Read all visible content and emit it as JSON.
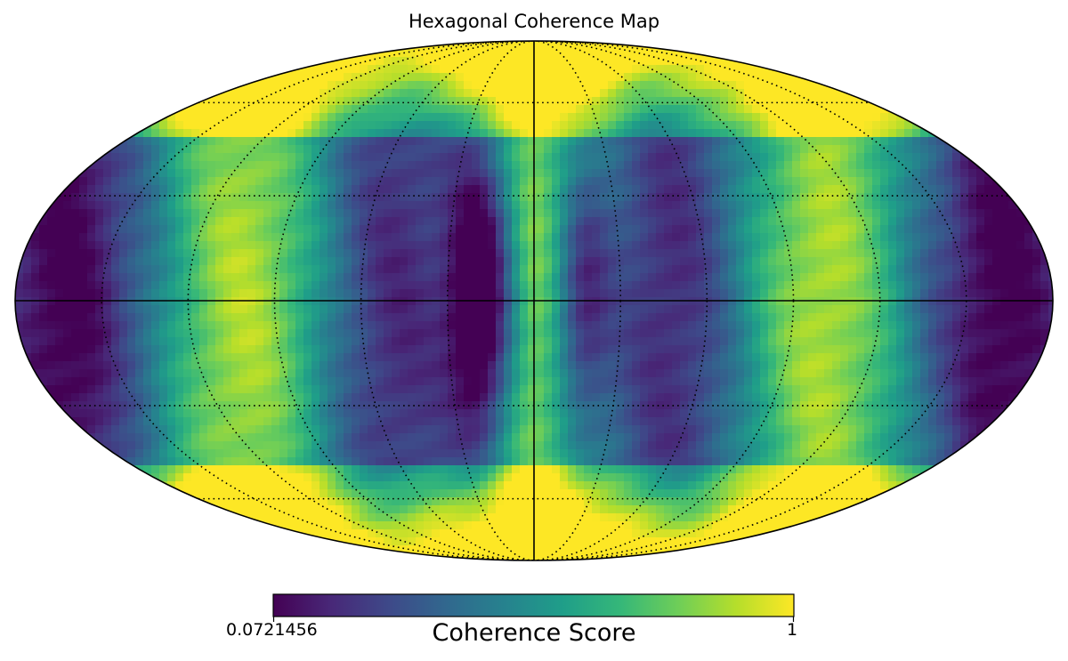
{
  "chart_data": {
    "type": "heatmap",
    "projection": "mollweide",
    "title": "Hexagonal Coherence Map",
    "colormap": "viridis",
    "value_range": [
      0.0721456,
      1
    ],
    "graticule": {
      "shown": true,
      "style": "dotted",
      "meridian_step_deg": 30,
      "parallel_step_deg": 30
    },
    "colorbar": {
      "label": "Coherence Score",
      "min_label": "0.0721456",
      "max_label": "1",
      "placement": "bottom"
    },
    "pattern_description_is_not_text": false
  },
  "colors": {
    "viridis": [
      "#440154",
      "#482878",
      "#3e4989",
      "#31688e",
      "#26828e",
      "#1f9e89",
      "#35b779",
      "#6ece58",
      "#b5de2b",
      "#fde725"
    ]
  }
}
